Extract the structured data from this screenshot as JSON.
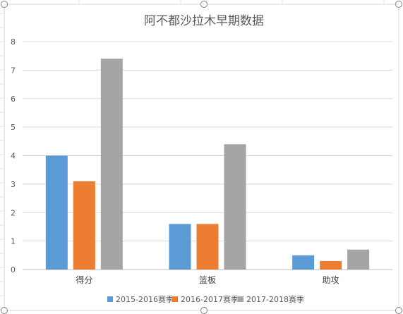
{
  "chart_data": {
    "type": "bar",
    "title": "阿不都沙拉木早期数据",
    "categories": [
      "得分",
      "篮板",
      "助攻"
    ],
    "series": [
      {
        "name": "2015-2016赛季",
        "values": [
          4.0,
          1.6,
          0.5
        ],
        "color": "#5B9BD5"
      },
      {
        "name": "2016-2017赛季",
        "values": [
          3.1,
          1.6,
          0.3
        ],
        "color": "#ED7D31"
      },
      {
        "name": "2017-2018赛季",
        "values": [
          7.4,
          4.4,
          0.7
        ],
        "color": "#A5A5A5"
      }
    ],
    "ylim": [
      0,
      8
    ],
    "yticks": [
      "0",
      "1",
      "2",
      "3",
      "4",
      "5",
      "6",
      "7",
      "8"
    ],
    "grid": true,
    "legend_position": "bottom",
    "colors": {
      "gridline": "#D9D9D9",
      "axis": "#BFBFBF",
      "frame": "#D9D9D9"
    }
  }
}
